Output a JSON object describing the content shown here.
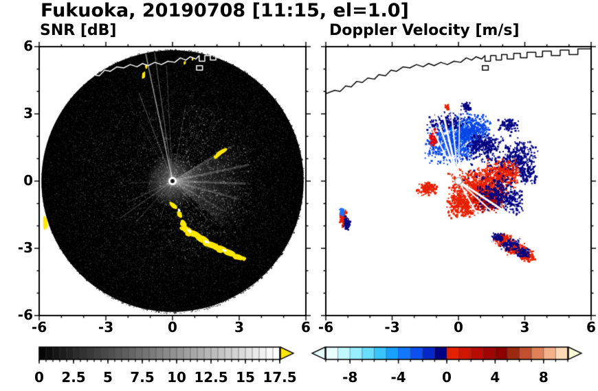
{
  "header": {
    "title": "Fukuoka, 20190708 [11:15, el=1.0]"
  },
  "chart_data": [
    {
      "kind": "snr_ppi",
      "type": "heatmap",
      "title": "SNR [dB]",
      "description": "Radar PPI scan of signal-to-noise ratio; black disk of range coverage with speckle noise, bright center, radial interference rays, yellow ground-clutter arc to the south-southwest and white coastline overlay at top",
      "xlim": [
        -6,
        6
      ],
      "ylim": [
        -6,
        6
      ],
      "xticks": [
        -6,
        -3,
        0,
        3,
        6
      ],
      "yticks": [
        6,
        3,
        0,
        -3,
        -6
      ],
      "minor_tick_step": 1,
      "show_ylabels": true,
      "seed": 11,
      "disk": {
        "cx": 0,
        "cy": 0,
        "r": 5.9,
        "color": "#000000"
      },
      "speckle": {
        "count": 22000
      },
      "east_haze": {
        "deg_from": -42,
        "deg_to": 33,
        "r": 3.4,
        "alpha": 0.26
      },
      "center_glow_r": 1.25,
      "rays": [
        {
          "deg": 102,
          "len": 5.8,
          "w": 1.6,
          "a": 0.55
        },
        {
          "deg": 98,
          "len": 5.8,
          "w": 1.2,
          "a": 0.35
        },
        {
          "deg": 93,
          "len": 5.2,
          "w": 1.0,
          "a": 0.22
        },
        {
          "deg": 111,
          "len": 4.2,
          "w": 1.2,
          "a": 0.25
        },
        {
          "deg": 120,
          "len": 3.0,
          "w": 1.0,
          "a": 0.15
        },
        {
          "deg": 80,
          "len": 3.4,
          "w": 1.0,
          "a": 0.18
        },
        {
          "deg": 62,
          "len": 2.6,
          "w": 1.0,
          "a": 0.12
        },
        {
          "deg": 30,
          "len": 3.2,
          "w": 2.0,
          "a": 0.16
        },
        {
          "deg": 12,
          "len": 3.5,
          "w": 3.0,
          "a": 0.2
        },
        {
          "deg": -2,
          "len": 3.3,
          "w": 3.0,
          "a": 0.22
        },
        {
          "deg": -15,
          "len": 3.1,
          "w": 2.5,
          "a": 0.18
        },
        {
          "deg": -30,
          "len": 2.7,
          "w": 2.0,
          "a": 0.13
        },
        {
          "deg": -48,
          "len": 2.3,
          "w": 2.0,
          "a": 0.1
        },
        {
          "deg": 205,
          "len": 2.3,
          "w": 1.4,
          "a": 0.16
        },
        {
          "deg": 215,
          "len": 2.9,
          "w": 1.4,
          "a": 0.2
        },
        {
          "deg": 228,
          "len": 2.5,
          "w": 1.2,
          "a": 0.15
        },
        {
          "deg": 183,
          "len": 2.0,
          "w": 1.6,
          "a": 0.1
        },
        {
          "deg": 252,
          "len": 1.8,
          "w": 1.2,
          "a": 0.12
        }
      ],
      "clutter_color": "#ffe800",
      "clutter": [
        [
          0.05,
          -1.1,
          0.2,
          0.1,
          -40
        ],
        [
          0.32,
          -1.5,
          0.16,
          0.09,
          -55
        ],
        [
          0.5,
          -1.9,
          0.2,
          0.11,
          -60
        ],
        [
          0.62,
          -2.15,
          0.24,
          0.12,
          -35
        ],
        [
          0.95,
          -2.35,
          0.3,
          0.14,
          -20
        ],
        [
          1.35,
          -2.6,
          0.34,
          0.16,
          -25
        ],
        [
          1.75,
          -2.85,
          0.3,
          0.14,
          -18
        ],
        [
          2.15,
          -3.02,
          0.32,
          0.14,
          -14
        ],
        [
          2.55,
          -3.2,
          0.3,
          0.14,
          -18
        ],
        [
          2.92,
          -3.38,
          0.24,
          0.12,
          -12
        ],
        [
          3.2,
          -3.45,
          0.12,
          0.08,
          -10
        ],
        [
          2.2,
          1.3,
          0.3,
          0.09,
          30
        ],
        [
          1.98,
          1.1,
          0.14,
          0.07,
          30
        ],
        [
          -5.72,
          -1.85,
          0.1,
          0.28,
          8
        ],
        [
          -1.3,
          4.72,
          0.07,
          0.13,
          0
        ],
        [
          -1.18,
          5.1,
          0.05,
          0.09,
          0
        ],
        [
          0.55,
          5.28,
          0.05,
          0.07,
          0
        ],
        [
          0.9,
          5.45,
          0.04,
          0.06,
          0
        ]
      ],
      "white_bits": [
        [
          0.3,
          -1.3,
          0.08,
          0.05,
          -50
        ],
        [
          0.75,
          -2.22,
          0.1,
          0.05,
          -30
        ],
        [
          1.55,
          -2.72,
          0.12,
          0.05,
          -20
        ],
        [
          2.35,
          -3.1,
          0.1,
          0.04,
          -15
        ]
      ],
      "coast_color": "#ffffff",
      "colorbar": {
        "min": 0,
        "max": 17.5,
        "steps": 35,
        "style": "grayscale",
        "over_arrow": "#ffe800",
        "minor_step": 0.5,
        "tick_values": [
          0,
          2.5,
          5,
          7.5,
          10,
          12.5,
          15,
          17.5
        ],
        "tick_labels": [
          "0",
          "2.5",
          "5",
          "7.5",
          "10",
          "12.5",
          "15",
          "17.5"
        ]
      }
    },
    {
      "kind": "doppler_ppi",
      "type": "heatmap",
      "title": "Doppler Velocity [m/s]",
      "description": "Radar PPI scan of Doppler velocity; blue (toward) echo lobe north of radar and red (away) lobe east-southeast with navy near-zero speckle, clutter arc echoes to the south, black coastline overlay at top",
      "xlim": [
        -6,
        6
      ],
      "ylim": [
        -6,
        6
      ],
      "xticks": [
        -6,
        -3,
        0,
        3,
        6
      ],
      "yticks": [
        6,
        3,
        0,
        -3,
        -6
      ],
      "minor_tick_step": 1,
      "show_ylabels": false,
      "clusters": [
        {
          "color": "#2a8cff",
          "cx": 0.0,
          "cy": 2.05,
          "rx": 1.1,
          "ry": 0.85,
          "n": 260
        },
        {
          "color": "#0a46e6",
          "cx": -0.3,
          "cy": 1.75,
          "rx": 1.35,
          "ry": 1.0,
          "n": 650
        },
        {
          "color": "#0a46e6",
          "cx": 0.65,
          "cy": 2.4,
          "rx": 0.85,
          "ry": 0.7,
          "n": 320
        },
        {
          "color": "#000082",
          "cx": -0.55,
          "cy": 2.65,
          "rx": 1.0,
          "ry": 0.5,
          "n": 160
        },
        {
          "color": "#000082",
          "cx": 1.15,
          "cy": 1.55,
          "rx": 0.8,
          "ry": 0.6,
          "n": 240
        },
        {
          "color": "#000082",
          "cx": 2.7,
          "cy": 1.15,
          "rx": 0.9,
          "ry": 0.75,
          "n": 260
        },
        {
          "color": "#000082",
          "cx": 2.2,
          "cy": 2.55,
          "rx": 0.5,
          "ry": 0.4,
          "n": 80
        },
        {
          "color": "#000082",
          "cx": 3.1,
          "cy": 0.35,
          "rx": 0.45,
          "ry": 0.5,
          "n": 90
        },
        {
          "color": "#e60000",
          "cx": -1.15,
          "cy": 1.95,
          "rx": 0.2,
          "ry": 0.45,
          "n": 60
        },
        {
          "color": "#e62000",
          "cx": 0.95,
          "cy": -0.3,
          "rx": 1.5,
          "ry": 1.0,
          "n": 950
        },
        {
          "color": "#e62000",
          "cx": 1.95,
          "cy": 0.35,
          "rx": 0.9,
          "ry": 0.7,
          "n": 420
        },
        {
          "color": "#e62000",
          "cx": 0.2,
          "cy": -1.05,
          "rx": 0.8,
          "ry": 0.6,
          "n": 320
        },
        {
          "color": "#e62000",
          "cx": -1.45,
          "cy": -0.3,
          "rx": 0.5,
          "ry": 0.35,
          "n": 150
        },
        {
          "color": "#a50000",
          "cx": 1.35,
          "cy": -0.9,
          "rx": 0.85,
          "ry": 0.5,
          "n": 220
        },
        {
          "color": "#000082",
          "cx": 1.65,
          "cy": -0.55,
          "rx": 1.0,
          "ry": 0.7,
          "n": 230
        },
        {
          "color": "#000082",
          "cx": 2.45,
          "cy": -0.9,
          "rx": 0.5,
          "ry": 0.6,
          "n": 120
        },
        {
          "color": "#000082",
          "cx": 1.6,
          "cy": 0.9,
          "rx": 2.0,
          "ry": 1.4,
          "n": 110
        },
        {
          "color": "#e62000",
          "cx": 2.0,
          "cy": -2.6,
          "rx": 0.5,
          "ry": 0.3,
          "n": 130
        },
        {
          "color": "#e62000",
          "cx": 2.55,
          "cy": -3.0,
          "rx": 0.5,
          "ry": 0.3,
          "n": 130
        },
        {
          "color": "#e62000",
          "cx": 3.05,
          "cy": -3.3,
          "rx": 0.4,
          "ry": 0.28,
          "n": 100
        },
        {
          "color": "#000082",
          "cx": 2.3,
          "cy": -2.8,
          "rx": 0.5,
          "ry": 0.28,
          "n": 100
        },
        {
          "color": "#000082",
          "cx": 2.9,
          "cy": -3.15,
          "rx": 0.4,
          "ry": 0.24,
          "n": 80
        },
        {
          "color": "#000082",
          "cx": 1.75,
          "cy": -2.45,
          "rx": 0.3,
          "ry": 0.2,
          "n": 60
        },
        {
          "color": "#e62000",
          "cx": -5.25,
          "cy": -1.6,
          "rx": 0.18,
          "ry": 0.42,
          "n": 90
        },
        {
          "color": "#000082",
          "cx": -5.08,
          "cy": -1.85,
          "rx": 0.15,
          "ry": 0.35,
          "n": 70
        },
        {
          "color": "#1a70ff",
          "cx": -5.3,
          "cy": -1.35,
          "rx": 0.12,
          "ry": 0.22,
          "n": 40
        },
        {
          "color": "#e62000",
          "cx": -0.55,
          "cy": 3.35,
          "rx": 0.12,
          "ry": 0.12,
          "n": 25
        },
        {
          "color": "#000082",
          "cx": 0.3,
          "cy": 3.35,
          "rx": 0.3,
          "ry": 0.25,
          "n": 50
        }
      ],
      "white_rays": [
        {
          "deg": 103,
          "w": 3
        },
        {
          "deg": 109,
          "w": 2.5
        },
        {
          "deg": 96,
          "w": 2
        },
        {
          "deg": 117,
          "w": 2
        },
        {
          "deg": 89,
          "w": 1.5
        },
        {
          "deg": -33,
          "w": 3
        },
        {
          "deg": -42,
          "w": 2
        },
        {
          "deg": -60,
          "w": 2
        }
      ],
      "white_ray_len": 4.6,
      "center_dot": {
        "r": 0.16,
        "fill": "#ffffff",
        "edge": "#888888"
      },
      "coast_color": "#000000",
      "colorbar": {
        "min": -10,
        "max": 10,
        "colors": [
          "#e8ffff",
          "#c0f8ff",
          "#98eeff",
          "#68ddff",
          "#38c4ff",
          "#18a0ff",
          "#1478ff",
          "#0c50f0",
          "#0428c8",
          "#000082",
          "#e62000",
          "#d01600",
          "#b80c00",
          "#a00400",
          "#8c0000",
          "#9c2810",
          "#c05030",
          "#e08058",
          "#f4b088",
          "#ffd8b8"
        ],
        "under_arrow": "#e8ffff",
        "over_arrow": "#ffffd8",
        "minor_step": 1,
        "tick_values": [
          -8,
          -4,
          0,
          4,
          8
        ],
        "tick_labels": [
          "-8",
          "-4",
          "0",
          "4",
          "8"
        ]
      }
    }
  ],
  "coastline": {
    "main": [
      [
        -6,
        3.9
      ],
      [
        -5.6,
        4.05
      ],
      [
        -5.35,
        4.0
      ],
      [
        -5.1,
        4.25
      ],
      [
        -4.85,
        4.2
      ],
      [
        -4.6,
        4.45
      ],
      [
        -4.35,
        4.4
      ],
      [
        -4.1,
        4.6
      ],
      [
        -3.8,
        4.55
      ],
      [
        -3.6,
        4.75
      ],
      [
        -3.3,
        4.7
      ],
      [
        -3.05,
        4.95
      ],
      [
        -2.8,
        4.9
      ],
      [
        -2.5,
        5.1
      ],
      [
        -2.2,
        5.05
      ],
      [
        -1.9,
        5.2
      ],
      [
        -1.6,
        5.1
      ],
      [
        -1.35,
        5.25
      ],
      [
        -1.1,
        5.15
      ],
      [
        -0.8,
        5.3
      ],
      [
        -0.5,
        5.2
      ],
      [
        -0.2,
        5.35
      ],
      [
        0.1,
        5.3
      ],
      [
        0.35,
        5.5
      ],
      [
        0.6,
        5.4
      ],
      [
        0.8,
        5.55
      ],
      [
        1.05,
        5.45
      ],
      [
        1.2,
        5.6
      ],
      [
        1.2,
        5.35
      ],
      [
        1.45,
        5.35
      ],
      [
        1.45,
        5.6
      ],
      [
        1.7,
        5.6
      ],
      [
        1.7,
        5.4
      ],
      [
        1.95,
        5.4
      ],
      [
        1.95,
        5.65
      ],
      [
        2.2,
        5.65
      ],
      [
        2.2,
        5.45
      ],
      [
        2.5,
        5.45
      ],
      [
        2.5,
        5.7
      ],
      [
        2.8,
        5.7
      ],
      [
        2.8,
        5.5
      ],
      [
        3.1,
        5.5
      ],
      [
        3.1,
        5.75
      ],
      [
        3.5,
        5.75
      ],
      [
        3.5,
        5.55
      ],
      [
        3.8,
        5.55
      ],
      [
        3.8,
        5.8
      ],
      [
        4.2,
        5.8
      ],
      [
        4.2,
        5.6
      ],
      [
        4.6,
        5.6
      ],
      [
        4.6,
        5.85
      ],
      [
        5.0,
        5.85
      ],
      [
        5.0,
        5.65
      ],
      [
        5.4,
        5.65
      ],
      [
        5.4,
        5.9
      ],
      [
        6.0,
        5.9
      ]
    ],
    "islands": [
      [
        [
          1.08,
          4.95
        ],
        [
          1.35,
          4.95
        ],
        [
          1.35,
          5.15
        ],
        [
          1.08,
          5.15
        ]
      ]
    ]
  }
}
